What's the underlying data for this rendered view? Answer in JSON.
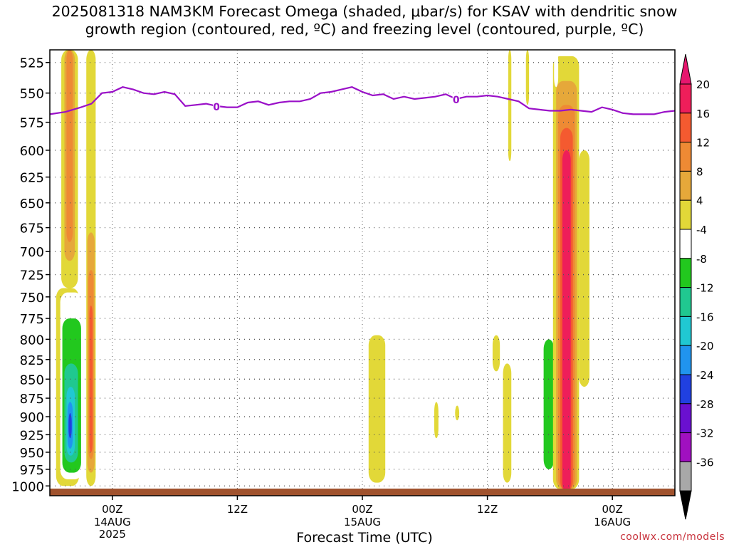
{
  "title": {
    "line1": "2025081318 NAM3KM Forecast Omega (shaded, μbar/s) for KSAV with dendritic snow",
    "line2": "growth region (contoured, red, ºC) and freezing level (contoured, purple, ºC)"
  },
  "credit": "coolwx.com/models",
  "chart_data": {
    "type": "heatmap",
    "xlabel": "Forecast Time (UTC)",
    "ylabel": "",
    "x_ticks": [
      {
        "label": "00Z",
        "sub": [
          "14AUG",
          "2025"
        ]
      },
      {
        "label": "12Z",
        "sub": []
      },
      {
        "label": "00Z",
        "sub": [
          "15AUG"
        ]
      },
      {
        "label": "12Z",
        "sub": []
      },
      {
        "label": "00Z",
        "sub": [
          "16AUG"
        ]
      }
    ],
    "y_levels_mb": [
      525,
      550,
      575,
      600,
      625,
      650,
      675,
      700,
      725,
      750,
      775,
      800,
      825,
      850,
      875,
      900,
      925,
      950,
      975,
      1000
    ],
    "ylim_mb": [
      1015,
      515
    ],
    "xlim_hours": [
      -6,
      54
    ],
    "log_pressure": true,
    "grid": true,
    "colorbar": {
      "labels": [
        "20",
        "16",
        "12",
        "8",
        "4",
        "-4",
        "-8",
        "-12",
        "-16",
        "-20",
        "-24",
        "-28",
        "-32",
        "-36"
      ],
      "colors": [
        "#ee1e5a",
        "#f45a30",
        "#ee8a34",
        "#e6a83a",
        "#e2d838",
        "#ffffff",
        "#22c81e",
        "#20c890",
        "#20c8d2",
        "#2094ee",
        "#2040e0",
        "#6a10d0",
        "#a010c0",
        "#a8a8a8"
      ],
      "top_arrow_color": "#e6166e",
      "bottom_arrow_color": "#000000"
    },
    "freezing_level": {
      "label": "0",
      "color": "#9a10c8",
      "hours": [
        -6,
        -4.5,
        -3,
        -2,
        -1,
        0,
        1,
        2,
        3,
        4,
        5,
        6,
        7,
        8,
        9,
        10,
        11,
        12,
        13,
        14,
        15,
        16,
        17,
        18,
        19,
        20,
        21,
        22,
        23,
        24,
        25,
        26,
        27,
        28,
        29,
        30,
        31,
        32,
        33,
        34,
        35,
        36,
        37,
        38,
        39,
        40,
        41,
        42,
        43,
        44,
        45,
        46,
        47,
        48,
        49,
        50,
        51,
        52,
        53,
        54
      ],
      "pressure": [
        568,
        566,
        562,
        559,
        550,
        549,
        545,
        547,
        550,
        551,
        549,
        551,
        561,
        560,
        559,
        561,
        562,
        562,
        558,
        557,
        560,
        558,
        557,
        557,
        555,
        550,
        549,
        547,
        545,
        549,
        552,
        551,
        555,
        553,
        555,
        554,
        553,
        551,
        555,
        553,
        553,
        552,
        553,
        555,
        557,
        563,
        564,
        565,
        565,
        564,
        565,
        566,
        562,
        564,
        567,
        568,
        568,
        568,
        566,
        565
      ]
    },
    "omega_cells": [
      {
        "t0": -4.9,
        "t1": -3.3,
        "p0": 515,
        "p1": 740,
        "v": 4
      },
      {
        "t0": -4.6,
        "t1": -3.6,
        "p0": 515,
        "p1": 710,
        "v": 8
      },
      {
        "t0": -4.4,
        "t1": -3.8,
        "p0": 515,
        "p1": 690,
        "v": 12
      },
      {
        "t0": -5.4,
        "t1": -3.2,
        "p0": 740,
        "p1": 1000,
        "v": 4
      },
      {
        "t0": -5.0,
        "t1": -2.9,
        "p0": 745,
        "p1": 990,
        "v": -4
      },
      {
        "t0": -4.8,
        "t1": -3.0,
        "p0": 775,
        "p1": 980,
        "v": -8
      },
      {
        "t0": -4.6,
        "t1": -3.3,
        "p0": 830,
        "p1": 965,
        "v": -12
      },
      {
        "t0": -4.4,
        "t1": -3.6,
        "p0": 860,
        "p1": 955,
        "v": -16
      },
      {
        "t0": -4.3,
        "t1": -3.8,
        "p0": 880,
        "p1": 945,
        "v": -20
      },
      {
        "t0": -4.2,
        "t1": -3.9,
        "p0": 895,
        "p1": 930,
        "v": -24
      },
      {
        "t0": -2.5,
        "t1": -1.6,
        "p0": 515,
        "p1": 1000,
        "v": 4
      },
      {
        "t0": -2.4,
        "t1": -1.7,
        "p0": 680,
        "p1": 980,
        "v": 8
      },
      {
        "t0": -2.3,
        "t1": -1.8,
        "p0": 720,
        "p1": 960,
        "v": 12
      },
      {
        "t0": -2.2,
        "t1": -1.9,
        "p0": 760,
        "p1": 950,
        "v": 16
      },
      {
        "t0": 18.5,
        "t1": 19.0,
        "p0": 862,
        "p1": 928,
        "v": -4
      },
      {
        "t0": 24.6,
        "t1": 26.2,
        "p0": 795,
        "p1": 995,
        "v": 4
      },
      {
        "t0": 30.9,
        "t1": 31.3,
        "p0": 880,
        "p1": 930,
        "v": 4
      },
      {
        "t0": 32.9,
        "t1": 33.3,
        "p0": 885,
        "p1": 905,
        "v": 4
      },
      {
        "t0": 36.5,
        "t1": 37.2,
        "p0": 795,
        "p1": 840,
        "v": 4
      },
      {
        "t0": 37.5,
        "t1": 38.3,
        "p0": 830,
        "p1": 995,
        "v": 4
      },
      {
        "t0": 38.0,
        "t1": 38.3,
        "p0": 515,
        "p1": 610,
        "v": 4
      },
      {
        "t0": 39.7,
        "t1": 40.0,
        "p0": 515,
        "p1": 560,
        "v": 4
      },
      {
        "t0": 36.1,
        "t1": 37.3,
        "p0": 875,
        "p1": 955,
        "v": -4
      },
      {
        "t0": 38.9,
        "t1": 40.5,
        "p0": 890,
        "p1": 975,
        "v": -4
      },
      {
        "t0": 39.3,
        "t1": 39.6,
        "p0": 615,
        "p1": 805,
        "v": -4
      },
      {
        "t0": 40.8,
        "t1": 42.8,
        "p0": 665,
        "p1": 990,
        "v": -4
      },
      {
        "t0": 41.4,
        "t1": 42.4,
        "p0": 800,
        "p1": 975,
        "v": -8
      },
      {
        "t0": 42.3,
        "t1": 44.8,
        "p0": 520,
        "p1": 1005,
        "v": 4
      },
      {
        "t0": 42.6,
        "t1": 44.6,
        "p0": 540,
        "p1": 1005,
        "v": 8
      },
      {
        "t0": 42.8,
        "t1": 44.4,
        "p0": 560,
        "p1": 1005,
        "v": 12
      },
      {
        "t0": 43.0,
        "t1": 44.2,
        "p0": 580,
        "p1": 1008,
        "v": 16
      },
      {
        "t0": 43.2,
        "t1": 44.0,
        "p0": 600,
        "p1": 1010,
        "v": 20
      },
      {
        "t0": 42.4,
        "t1": 42.8,
        "p0": 515,
        "p1": 545,
        "v": -4
      },
      {
        "t0": 44.8,
        "t1": 45.8,
        "p0": 600,
        "p1": 860,
        "v": 4
      },
      {
        "t0": 45.8,
        "t1": 46.1,
        "p0": 515,
        "p1": 935,
        "v": -4
      }
    ]
  }
}
